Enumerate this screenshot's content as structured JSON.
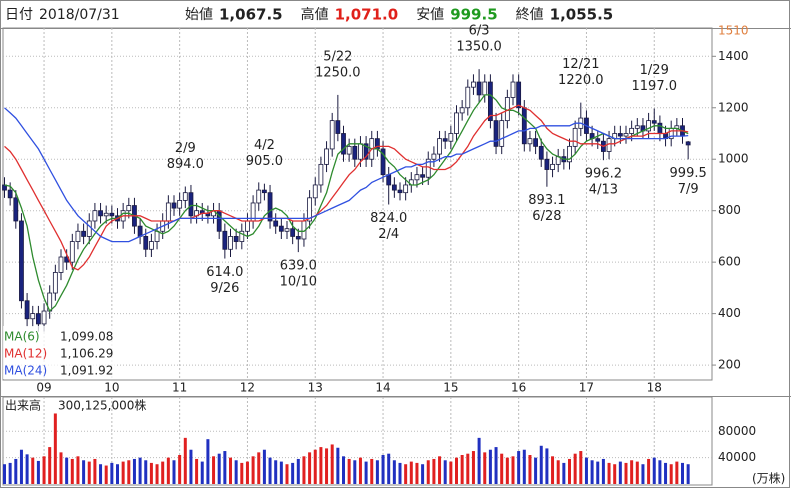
{
  "header": {
    "items": [
      {
        "label": "日付",
        "value": "2018/07/31"
      },
      {
        "label": "始値",
        "value": "1,067.5"
      },
      {
        "label": "高値",
        "value": "1,071.0",
        "color": "#e0201a"
      },
      {
        "label": "安値",
        "value": "999.5",
        "color": "#1f9a1f"
      },
      {
        "label": "終値",
        "value": "1,055.5"
      }
    ]
  },
  "chart_data": [
    {
      "type": "candlestick",
      "categories": [
        null,
        null,
        null,
        null,
        null,
        null,
        null,
        "09",
        null,
        null,
        null,
        null,
        null,
        null,
        null,
        null,
        null,
        null,
        null,
        "10",
        null,
        null,
        null,
        null,
        null,
        null,
        null,
        null,
        null,
        null,
        null,
        "11",
        null,
        null,
        null,
        null,
        null,
        null,
        null,
        null,
        null,
        null,
        null,
        "12",
        null,
        null,
        null,
        null,
        null,
        null,
        null,
        null,
        null,
        null,
        null,
        "13",
        null,
        null,
        null,
        null,
        null,
        null,
        null,
        null,
        null,
        null,
        null,
        "14",
        null,
        null,
        null,
        null,
        null,
        null,
        null,
        null,
        null,
        null,
        null,
        "15",
        null,
        null,
        null,
        null,
        null,
        null,
        null,
        null,
        null,
        null,
        null,
        "16",
        null,
        null,
        null,
        null,
        null,
        null,
        null,
        null,
        null,
        null,
        null,
        "17",
        null,
        null,
        null,
        null,
        null,
        null,
        null,
        null,
        null,
        null,
        null,
        "18",
        null,
        null,
        null,
        null,
        null,
        null
      ],
      "open": [
        900,
        880,
        850,
        760,
        450,
        380,
        400,
        360,
        410,
        480,
        560,
        620,
        600,
        680,
        720,
        700,
        760,
        800,
        780,
        790,
        780,
        760,
        800,
        820,
        740,
        700,
        650,
        680,
        720,
        760,
        830,
        810,
        840,
        870,
        780,
        800,
        790,
        780,
        800,
        720,
        650,
        700,
        680,
        720,
        760,
        830,
        880,
        870,
        760,
        740,
        720,
        730,
        700,
        690,
        760,
        850,
        900,
        980,
        1040,
        1150,
        1100,
        1020,
        1050,
        1000,
        1060,
        1000,
        1080,
        1040,
        940,
        900,
        880,
        870,
        900,
        920,
        940,
        930,
        1000,
        1020,
        1080,
        1070,
        1100,
        1180,
        1200,
        1280,
        1300,
        1250,
        1300,
        1150,
        1050,
        1150,
        1240,
        1300,
        1200,
        1060,
        1080,
        1050,
        1000,
        960,
        980,
        1010,
        990,
        1050,
        1120,
        1160,
        1100,
        1080,
        1070,
        1030,
        1080,
        1100,
        1090,
        1100,
        1120,
        1130,
        1110,
        1150,
        1140,
        1100,
        1080,
        1120,
        1130,
        1067.5
      ],
      "high": [
        930,
        910,
        880,
        790,
        480,
        430,
        430,
        440,
        510,
        590,
        650,
        650,
        710,
        750,
        750,
        790,
        830,
        830,
        820,
        820,
        810,
        830,
        850,
        850,
        770,
        730,
        710,
        750,
        790,
        860,
        860,
        870,
        894,
        900,
        830,
        830,
        820,
        830,
        830,
        750,
        730,
        730,
        750,
        790,
        860,
        910,
        905,
        900,
        790,
        770,
        760,
        760,
        730,
        790,
        880,
        930,
        1010,
        1070,
        1180,
        1250,
        1130,
        1080,
        1080,
        1090,
        1090,
        1110,
        1110,
        1070,
        970,
        930,
        910,
        930,
        950,
        970,
        970,
        1030,
        1050,
        1110,
        1110,
        1130,
        1210,
        1230,
        1310,
        1330,
        1350,
        1330,
        1330,
        1180,
        1180,
        1270,
        1330,
        1330,
        1230,
        1110,
        1110,
        1080,
        1030,
        1010,
        1040,
        1040,
        1080,
        1150,
        1220,
        1190,
        1130,
        1110,
        1100,
        1110,
        1130,
        1130,
        1130,
        1150,
        1160,
        1160,
        1180,
        1197,
        1170,
        1130,
        1150,
        1160,
        1160,
        1071
      ],
      "low": [
        850,
        820,
        730,
        420,
        350,
        350,
        330,
        330,
        380,
        450,
        530,
        570,
        570,
        650,
        670,
        670,
        730,
        750,
        750,
        750,
        730,
        730,
        770,
        710,
        670,
        620,
        620,
        650,
        690,
        730,
        780,
        780,
        810,
        750,
        750,
        760,
        750,
        750,
        690,
        614,
        620,
        650,
        650,
        690,
        730,
        800,
        840,
        730,
        710,
        690,
        690,
        670,
        639,
        660,
        730,
        820,
        870,
        950,
        1010,
        1070,
        990,
        990,
        970,
        970,
        970,
        970,
        1010,
        910,
        824,
        850,
        840,
        840,
        870,
        890,
        900,
        900,
        970,
        990,
        1040,
        1040,
        1070,
        1150,
        1170,
        1250,
        1220,
        1220,
        1120,
        1020,
        1020,
        1120,
        1210,
        1170,
        1030,
        1030,
        1020,
        970,
        893.1,
        930,
        950,
        960,
        960,
        1020,
        1090,
        1070,
        1050,
        1040,
        996.2,
        1000,
        1050,
        1060,
        1060,
        1070,
        1090,
        1080,
        1080,
        1110,
        1070,
        1050,
        1050,
        1090,
        1060,
        999.5
      ],
      "close": [
        880,
        850,
        760,
        450,
        380,
        400,
        360,
        410,
        480,
        560,
        620,
        600,
        680,
        720,
        700,
        760,
        800,
        780,
        790,
        780,
        760,
        800,
        820,
        740,
        700,
        650,
        680,
        720,
        760,
        830,
        810,
        840,
        870,
        780,
        800,
        790,
        780,
        800,
        720,
        650,
        700,
        680,
        720,
        760,
        830,
        880,
        870,
        760,
        740,
        720,
        730,
        700,
        690,
        760,
        850,
        900,
        980,
        1040,
        1150,
        1100,
        1020,
        1050,
        1000,
        1060,
        1000,
        1080,
        1040,
        940,
        900,
        880,
        870,
        900,
        920,
        940,
        930,
        1000,
        1020,
        1080,
        1070,
        1100,
        1180,
        1200,
        1280,
        1300,
        1250,
        1300,
        1150,
        1050,
        1150,
        1240,
        1300,
        1200,
        1060,
        1080,
        1050,
        1000,
        960,
        980,
        1010,
        990,
        1050,
        1120,
        1160,
        1100,
        1080,
        1070,
        1030,
        1080,
        1100,
        1090,
        1100,
        1120,
        1130,
        1110,
        1150,
        1140,
        1100,
        1080,
        1120,
        1130,
        1090,
        1055.5
      ],
      "up_color": "#ffffff",
      "down_color": "#1a237e",
      "edge_color": "#1a1a40",
      "series": [
        {
          "name": "MA(6)",
          "color": "#2e8b2e",
          "legend_value": "1,099.08",
          "values": [
            900,
            895,
            870,
            810,
            740,
            620,
            530,
            460,
            410,
            430,
            470,
            510,
            560,
            610,
            650,
            680,
            710,
            740,
            760,
            770,
            770,
            790,
            790,
            780,
            770,
            740,
            730,
            720,
            710,
            720,
            740,
            770,
            800,
            820,
            820,
            810,
            800,
            800,
            780,
            760,
            740,
            720,
            710,
            700,
            710,
            740,
            780,
            800,
            810,
            800,
            780,
            740,
            720,
            720,
            740,
            770,
            820,
            870,
            950,
            1020,
            1040,
            1060,
            1060,
            1060,
            1050,
            1040,
            1040,
            1020,
            990,
            970,
            940,
            920,
            900,
            900,
            910,
            920,
            940,
            970,
            1000,
            1030,
            1070,
            1110,
            1150,
            1190,
            1220,
            1250,
            1250,
            1230,
            1200,
            1190,
            1190,
            1180,
            1160,
            1140,
            1120,
            1070,
            1040,
            1020,
            1010,
            1000,
            1000,
            1020,
            1050,
            1070,
            1080,
            1090,
            1100,
            1090,
            1080,
            1080,
            1080,
            1090,
            1100,
            1110,
            1120,
            1130,
            1130,
            1120,
            1120,
            1120,
            1110,
            1099.08
          ]
        },
        {
          "name": "MA(12)",
          "color": "#e03030",
          "legend_value": "1,106.29",
          "values": [
            1050,
            1030,
            1000,
            960,
            920,
            880,
            840,
            800,
            760,
            720,
            680,
            630,
            580,
            570,
            590,
            620,
            660,
            700,
            740,
            760,
            770,
            780,
            780,
            780,
            780,
            770,
            760,
            760,
            760,
            760,
            760,
            770,
            770,
            770,
            780,
            790,
            790,
            800,
            800,
            790,
            780,
            770,
            760,
            760,
            760,
            760,
            770,
            770,
            770,
            770,
            770,
            760,
            760,
            760,
            770,
            780,
            800,
            820,
            850,
            880,
            910,
            940,
            960,
            990,
            1010,
            1040,
            1050,
            1050,
            1050,
            1040,
            1020,
            1000,
            990,
            980,
            970,
            970,
            960,
            960,
            960,
            970,
            990,
            1020,
            1050,
            1090,
            1120,
            1150,
            1170,
            1170,
            1180,
            1190,
            1200,
            1210,
            1200,
            1190,
            1170,
            1150,
            1120,
            1100,
            1090,
            1080,
            1070,
            1070,
            1060,
            1060,
            1060,
            1060,
            1050,
            1060,
            1060,
            1070,
            1080,
            1090,
            1090,
            1090,
            1100,
            1100,
            1100,
            1100,
            1110,
            1110,
            1110,
            1106.29
          ]
        },
        {
          "name": "MA(24)",
          "color": "#3050e0",
          "legend_value": "1,091.92",
          "values": [
            1200,
            1180,
            1160,
            1130,
            1100,
            1070,
            1040,
            1000,
            960,
            920,
            880,
            840,
            810,
            780,
            760,
            740,
            720,
            700,
            690,
            680,
            680,
            680,
            680,
            690,
            700,
            710,
            720,
            730,
            740,
            750,
            760,
            770,
            770,
            770,
            770,
            770,
            770,
            770,
            770,
            770,
            770,
            770,
            770,
            770,
            770,
            770,
            770,
            770,
            770,
            770,
            770,
            770,
            770,
            770,
            770,
            780,
            790,
            800,
            810,
            820,
            830,
            840,
            860,
            880,
            890,
            910,
            920,
            930,
            940,
            950,
            960,
            970,
            970,
            980,
            980,
            990,
            990,
            1000,
            1010,
            1010,
            1020,
            1020,
            1030,
            1040,
            1050,
            1060,
            1070,
            1070,
            1080,
            1090,
            1100,
            1110,
            1110,
            1120,
            1120,
            1130,
            1130,
            1130,
            1130,
            1130,
            1130,
            1140,
            1140,
            1130,
            1120,
            1110,
            1100,
            1090,
            1080,
            1080,
            1080,
            1080,
            1080,
            1080,
            1080,
            1080,
            1080,
            1080,
            1090,
            1090,
            1090,
            1091.92
          ]
        }
      ],
      "ylim": [
        142,
        1510
      ],
      "yticks": [
        200,
        400,
        600,
        800,
        1000,
        1200,
        1400
      ],
      "grid": true,
      "ylim_max_color": "#e08040",
      "high_annotations": [
        {
          "date": "2/9",
          "price": {
            "value": 894,
            "label": "894.0"
          }
        },
        {
          "date": "4/2",
          "price": {
            "value": 905,
            "label": "905.0"
          }
        },
        {
          "date": "5/22",
          "price": {
            "value": 1250,
            "label": "1250.0"
          }
        },
        {
          "date": "6/3",
          "price": {
            "value": 1350,
            "label": "1350.0"
          }
        },
        {
          "date": "12/21",
          "price": {
            "value": 1220,
            "label": "1220.0"
          }
        },
        {
          "date": "1/29",
          "price": {
            "value": 1197,
            "label": "1197.0"
          }
        }
      ],
      "low_annotations": [
        {
          "date": "9/26",
          "price": {
            "value": 614,
            "label": "614.0"
          }
        },
        {
          "date": "10/10",
          "price": {
            "value": 639,
            "label": "639.0"
          }
        },
        {
          "date": "2/4",
          "price": {
            "value": 824,
            "label": "824.0"
          }
        },
        {
          "date": "6/28",
          "price": {
            "value": 893.1,
            "label": "893.1"
          }
        },
        {
          "date": "4/13",
          "price": {
            "value": 996.2,
            "label": "996.2"
          }
        },
        {
          "date": "7/9",
          "price": {
            "value": 999.5,
            "label": "999.5"
          }
        }
      ]
    },
    {
      "type": "bar",
      "title": "出来高",
      "last_label": "300,125,000株",
      "unit": "(万株)",
      "up_color": "#e02020",
      "down_color": "#2030c0",
      "values": [
        30000,
        32000,
        38000,
        52000,
        45000,
        40000,
        35000,
        42000,
        56000,
        107000,
        48000,
        40000,
        38000,
        42000,
        36000,
        34000,
        38000,
        30000,
        28000,
        32000,
        30000,
        34000,
        36000,
        38000,
        40000,
        36000,
        32000,
        30000,
        34000,
        40000,
        36000,
        44000,
        70000,
        52000,
        38000,
        34000,
        68000,
        42000,
        46000,
        50000,
        40000,
        36000,
        32000,
        34000,
        42000,
        48000,
        52000,
        40000,
        36000,
        34000,
        30000,
        32000,
        38000,
        42000,
        48000,
        52000,
        56000,
        54000,
        60000,
        55000,
        42000,
        38000,
        36000,
        40000,
        34000,
        38000,
        36000,
        44000,
        46000,
        36000,
        32000,
        30000,
        34000,
        32000,
        30000,
        36000,
        38000,
        42000,
        36000,
        34000,
        40000,
        44000,
        46000,
        50000,
        70000,
        48000,
        52000,
        56000,
        46000,
        40000,
        42000,
        50000,
        52000,
        44000,
        40000,
        58000,
        54000,
        42000,
        36000,
        32000,
        38000,
        46000,
        50000,
        40000,
        36000,
        34000,
        38000,
        32000,
        30000,
        34000,
        32000,
        36000,
        34000,
        30000,
        38000,
        40000,
        36000,
        32000,
        30000,
        34000,
        32000,
        30012.5
      ],
      "ylim": [
        0,
        132000
      ],
      "yticks": [
        40000,
        80000
      ],
      "grid": true
    }
  ]
}
